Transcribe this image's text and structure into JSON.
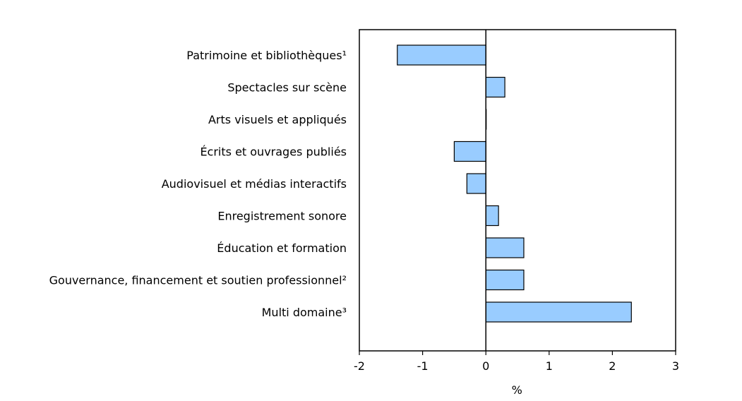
{
  "chart_data": {
    "type": "bar",
    "orientation": "horizontal",
    "categories": [
      "Patrimoine et bibliothèques¹",
      "Spectacles sur scène",
      "Arts visuels et appliqués",
      "Écrits et ouvrages publiés",
      "Audiovisuel et médias interactifs",
      "Enregistrement sonore",
      "Éducation et formation",
      "Gouvernance, financement et soutien professionnel²",
      "Multi domaine³"
    ],
    "values": [
      -1.4,
      0.3,
      0.0,
      -0.5,
      -0.3,
      0.2,
      0.6,
      0.6,
      2.3
    ],
    "xlabel": "%",
    "xlim": [
      -2,
      3
    ],
    "xticks": [
      "-2",
      "-1",
      "0",
      "1",
      "2",
      "3"
    ],
    "grid": false,
    "bar_color": "#99ccff",
    "bar_edge_color": "#000000"
  }
}
